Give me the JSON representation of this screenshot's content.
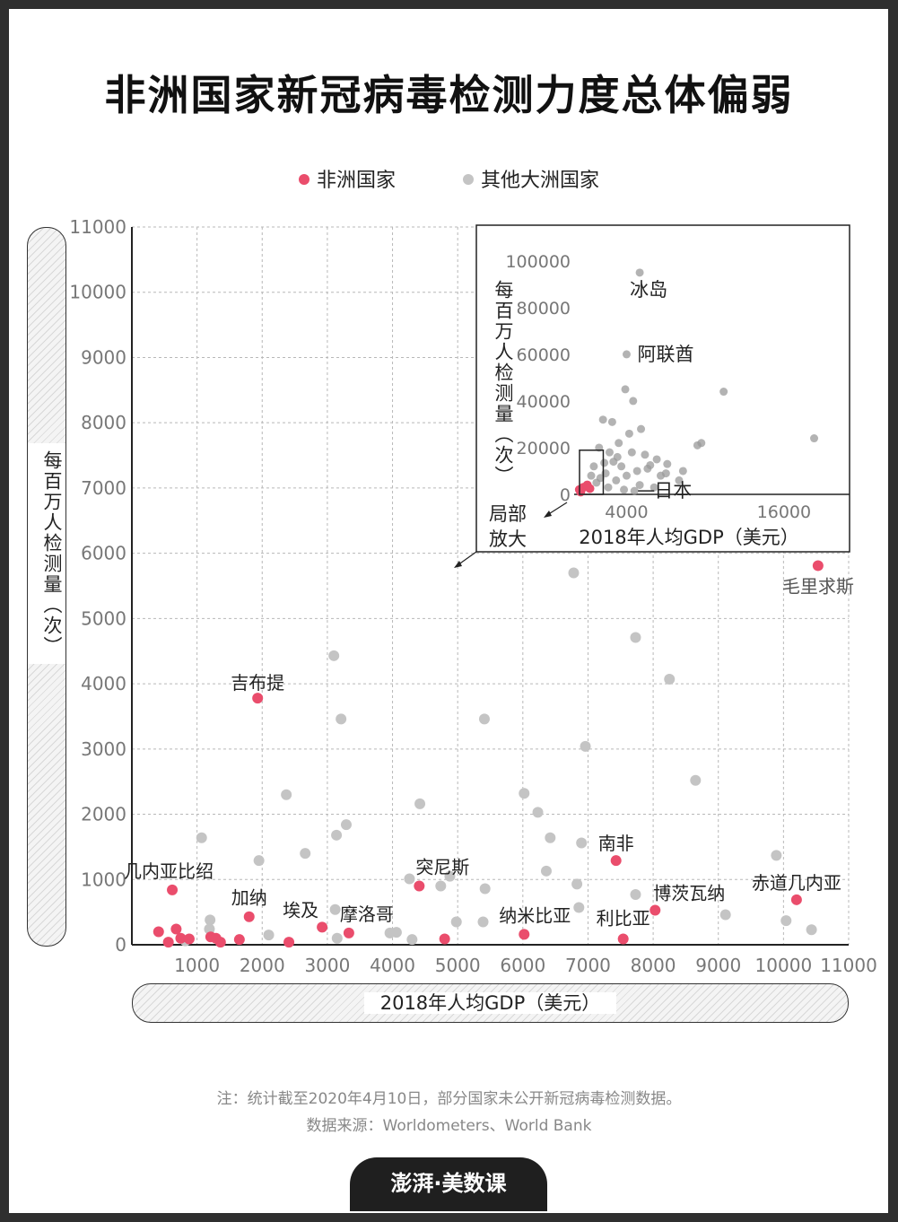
{
  "title": "非洲国家新冠病毒检测力度总体偏弱",
  "legend": {
    "africa": "非洲国家",
    "other": "其他大洲国家"
  },
  "colors": {
    "africa": "#ea4d6c",
    "other": "#c4c4c4",
    "axis": "#222222",
    "grid": "#b8b8b8"
  },
  "axes": {
    "ylabel": "每百万人检测量（次）",
    "xlabel": "2018年人均GDP（美元）"
  },
  "note": "注：统计截至2020年4月10日，部分国家未公开新冠病毒检测数据。",
  "source": "数据来源：Worldometers、World Bank",
  "brand": "澎湃·美数课",
  "chart_data": [
    {
      "type": "scatter",
      "xlim": [
        0,
        11000
      ],
      "ylim": [
        0,
        11000
      ],
      "x_ticks": [
        1000,
        2000,
        3000,
        4000,
        5000,
        6000,
        7000,
        8000,
        9000,
        10000,
        11000
      ],
      "y_ticks": [
        0,
        1000,
        2000,
        3000,
        4000,
        5000,
        6000,
        7000,
        8000,
        9000,
        10000,
        11000
      ],
      "xlabel": "2018年人均GDP（美元）",
      "ylabel": "每百万人检测量（次）",
      "grid": true,
      "series": [
        {
          "name": "非洲国家",
          "color": "#ea4d6c",
          "points": [
            {
              "x": 10530,
              "y": 5810,
              "label": "毛里求斯"
            },
            {
              "x": 1930,
              "y": 3780,
              "label": "吉布提"
            },
            {
              "x": 7430,
              "y": 1290,
              "label": "南非"
            },
            {
              "x": 4410,
              "y": 900,
              "label": "突尼斯"
            },
            {
              "x": 620,
              "y": 840,
              "label": "几内亚比绍"
            },
            {
              "x": 1800,
              "y": 430,
              "label": "加纳"
            },
            {
              "x": 10200,
              "y": 690,
              "label": "赤道几内亚"
            },
            {
              "x": 8030,
              "y": 530,
              "label": "博茨瓦纳"
            },
            {
              "x": 2920,
              "y": 270,
              "label": "埃及"
            },
            {
              "x": 3330,
              "y": 180,
              "label": "摩洛哥"
            },
            {
              "x": 6020,
              "y": 160,
              "label": "纳米比亚"
            },
            {
              "x": 7540,
              "y": 90,
              "label": "利比亚"
            },
            {
              "x": 410,
              "y": 200
            },
            {
              "x": 560,
              "y": 40
            },
            {
              "x": 680,
              "y": 240
            },
            {
              "x": 750,
              "y": 100
            },
            {
              "x": 880,
              "y": 90
            },
            {
              "x": 1210,
              "y": 120
            },
            {
              "x": 1290,
              "y": 100
            },
            {
              "x": 1360,
              "y": 40
            },
            {
              "x": 1650,
              "y": 80
            },
            {
              "x": 2410,
              "y": 40
            },
            {
              "x": 4800,
              "y": 90
            }
          ]
        },
        {
          "name": "其他大洲国家",
          "color": "#c4c4c4",
          "points": [
            {
              "x": 6780,
              "y": 5700
            },
            {
              "x": 7730,
              "y": 4710
            },
            {
              "x": 3100,
              "y": 4430
            },
            {
              "x": 8250,
              "y": 4070
            },
            {
              "x": 3210,
              "y": 3460
            },
            {
              "x": 5410,
              "y": 3460
            },
            {
              "x": 6960,
              "y": 3040
            },
            {
              "x": 8650,
              "y": 2520
            },
            {
              "x": 2370,
              "y": 2300
            },
            {
              "x": 6020,
              "y": 2320
            },
            {
              "x": 4420,
              "y": 2160
            },
            {
              "x": 6230,
              "y": 2030
            },
            {
              "x": 3290,
              "y": 1840
            },
            {
              "x": 3140,
              "y": 1680
            },
            {
              "x": 1070,
              "y": 1640
            },
            {
              "x": 6420,
              "y": 1640
            },
            {
              "x": 6900,
              "y": 1560
            },
            {
              "x": 2660,
              "y": 1400
            },
            {
              "x": 9890,
              "y": 1370
            },
            {
              "x": 1950,
              "y": 1290
            },
            {
              "x": 6360,
              "y": 1130
            },
            {
              "x": 4260,
              "y": 1010
            },
            {
              "x": 4880,
              "y": 1050
            },
            {
              "x": 6830,
              "y": 930
            },
            {
              "x": 4740,
              "y": 900
            },
            {
              "x": 5420,
              "y": 860
            },
            {
              "x": 7730,
              "y": 770
            },
            {
              "x": 6860,
              "y": 570
            },
            {
              "x": 3120,
              "y": 540
            },
            {
              "x": 9110,
              "y": 460
            },
            {
              "x": 1200,
              "y": 380
            },
            {
              "x": 4980,
              "y": 350
            },
            {
              "x": 5390,
              "y": 350
            },
            {
              "x": 10040,
              "y": 370
            },
            {
              "x": 10430,
              "y": 230
            },
            {
              "x": 1190,
              "y": 240
            },
            {
              "x": 3960,
              "y": 180
            },
            {
              "x": 4060,
              "y": 190
            },
            {
              "x": 2100,
              "y": 150
            },
            {
              "x": 3150,
              "y": 100
            },
            {
              "x": 4300,
              "y": 80
            },
            {
              "x": 820,
              "y": 60
            }
          ]
        }
      ]
    },
    {
      "type": "scatter",
      "title": "",
      "xlim": [
        0,
        21000
      ],
      "ylim": [
        0,
        108000
      ],
      "x_ticks": [
        4000,
        16000
      ],
      "y_ticks": [
        0,
        20000,
        40000,
        60000,
        80000,
        100000
      ],
      "xlabel": "2018年人均GDP（美元）",
      "ylabel": "每百万人检测量（次）",
      "zoom_label": "局部放大",
      "zoom_box": {
        "x": [
          0,
          1400
        ],
        "y": [
          0,
          12000
        ]
      },
      "series": [
        {
          "name": "非洲国家",
          "color": "#ea4d6c",
          "points": [
            {
              "x": 400,
              "y": 2000
            },
            {
              "x": 700,
              "y": 3000
            },
            {
              "x": 1000,
              "y": 4000
            },
            {
              "x": 1200,
              "y": 2500
            },
            {
              "x": 500,
              "y": 1000
            }
          ]
        },
        {
          "name": "其他大洲国家",
          "color": "#c4c4c4",
          "points": [
            {
              "x": 5000,
              "y": 95000,
              "label": "冰岛"
            },
            {
              "x": 4000,
              "y": 60000,
              "label": "阿联酋"
            },
            {
              "x": 4600,
              "y": 1500,
              "label": "日本"
            },
            {
              "x": 11400,
              "y": 44000
            },
            {
              "x": 18300,
              "y": 24000
            },
            {
              "x": 9700,
              "y": 22000
            },
            {
              "x": 9400,
              "y": 21000
            },
            {
              "x": 3900,
              "y": 45000
            },
            {
              "x": 4500,
              "y": 40000
            },
            {
              "x": 2200,
              "y": 32000
            },
            {
              "x": 2900,
              "y": 31000
            },
            {
              "x": 4200,
              "y": 26000
            },
            {
              "x": 5100,
              "y": 28000
            },
            {
              "x": 3400,
              "y": 22000
            },
            {
              "x": 1900,
              "y": 20000
            },
            {
              "x": 2700,
              "y": 18000
            },
            {
              "x": 3000,
              "y": 14000
            },
            {
              "x": 3600,
              "y": 12000
            },
            {
              "x": 4400,
              "y": 18000
            },
            {
              "x": 5400,
              "y": 17000
            },
            {
              "x": 6300,
              "y": 15000
            },
            {
              "x": 7100,
              "y": 13000
            },
            {
              "x": 5600,
              "y": 11000
            },
            {
              "x": 4800,
              "y": 10000
            },
            {
              "x": 2400,
              "y": 9000
            },
            {
              "x": 2000,
              "y": 7000
            },
            {
              "x": 3200,
              "y": 6000
            },
            {
              "x": 6600,
              "y": 8000
            },
            {
              "x": 8300,
              "y": 10000
            },
            {
              "x": 8000,
              "y": 6000
            },
            {
              "x": 5000,
              "y": 4000
            },
            {
              "x": 1500,
              "y": 12000
            },
            {
              "x": 1700,
              "y": 5000
            },
            {
              "x": 2600,
              "y": 3000
            },
            {
              "x": 3800,
              "y": 2000
            },
            {
              "x": 6100,
              "y": 3000
            },
            {
              "x": 7000,
              "y": 9000
            },
            {
              "x": 3300,
              "y": 16000
            },
            {
              "x": 4000,
              "y": 8000
            },
            {
              "x": 5800,
              "y": 12500
            },
            {
              "x": 2300,
              "y": 13500
            },
            {
              "x": 1300,
              "y": 8000
            }
          ]
        }
      ]
    }
  ]
}
